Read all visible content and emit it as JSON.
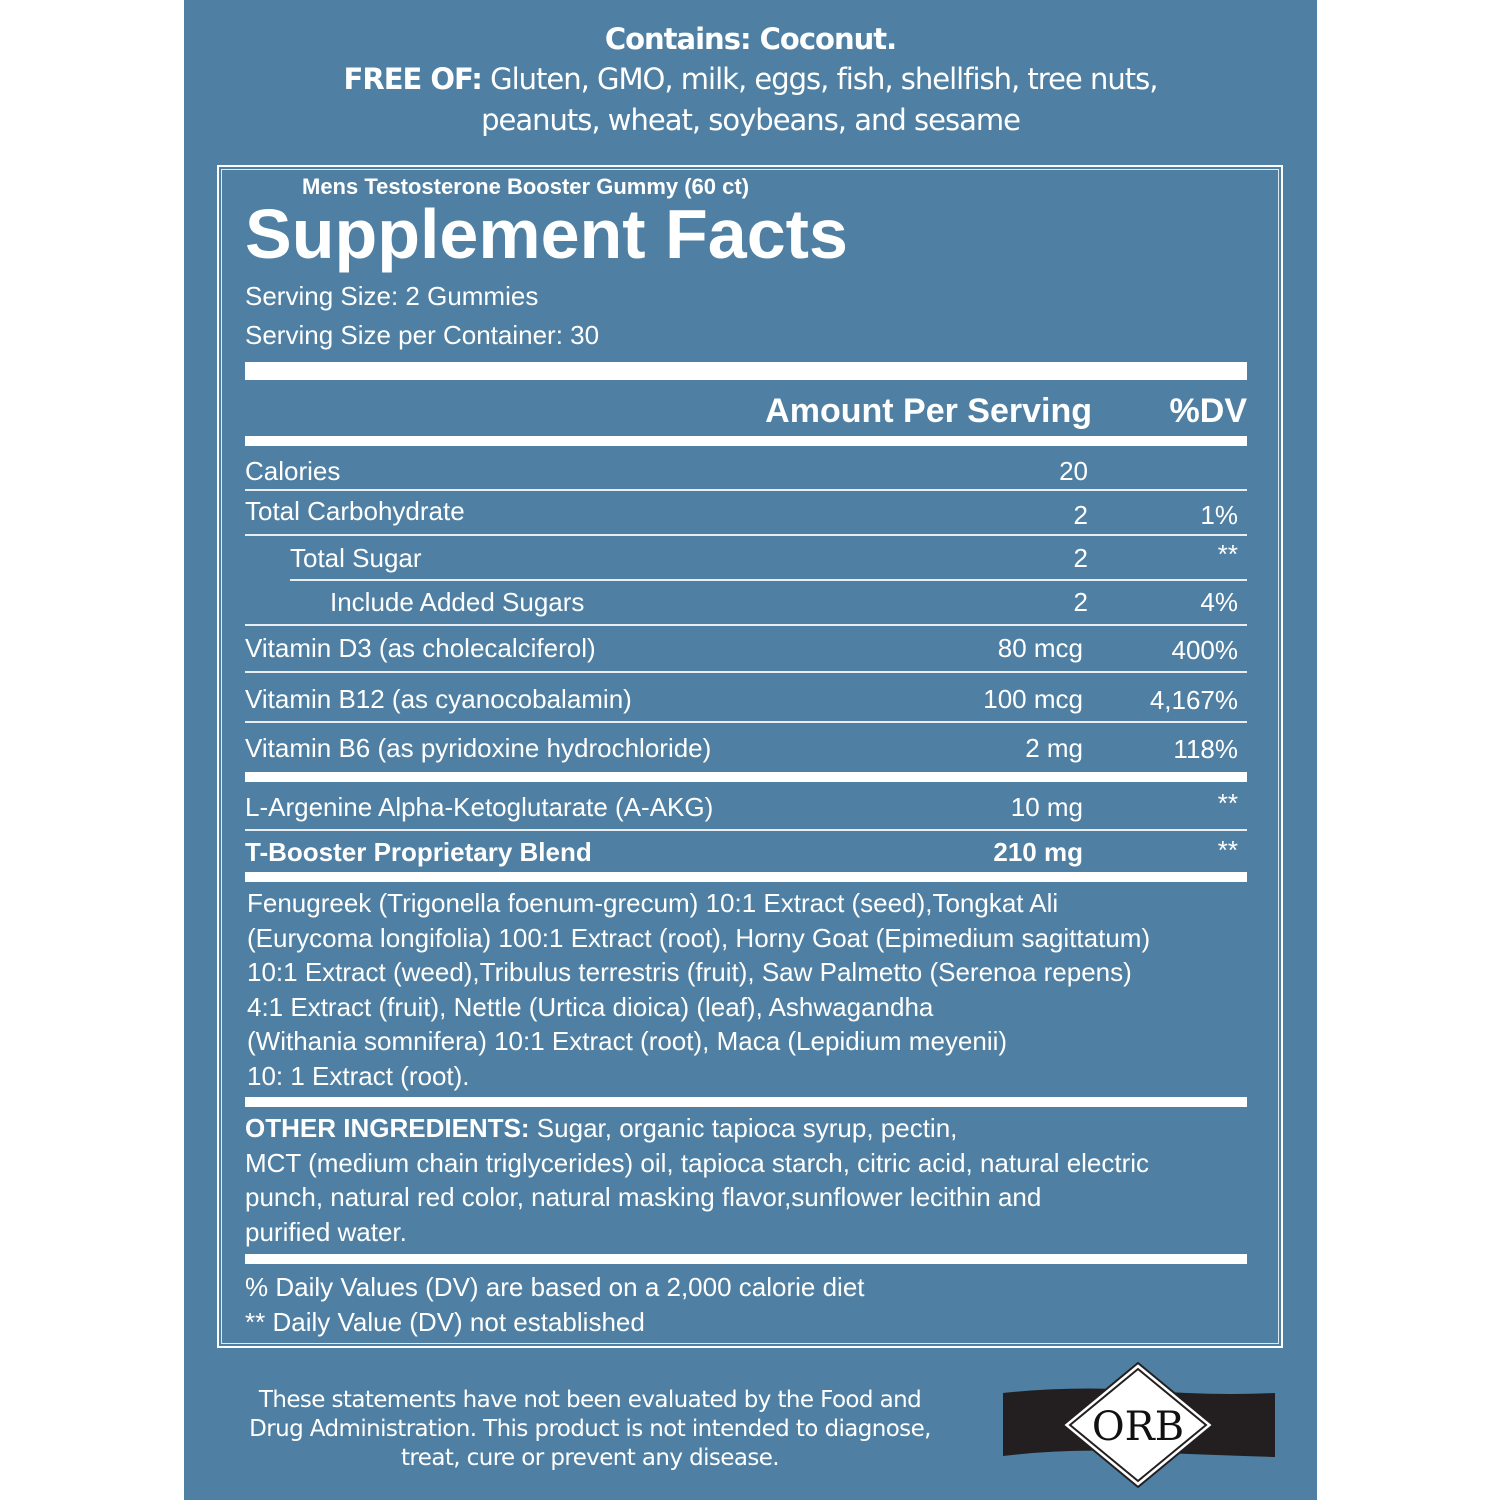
{
  "allergens": {
    "contains_label": "Contains: Coconut.",
    "free_of_label": "FREE OF:",
    "free_of_line1": "Gluten, GMO, milk, eggs, fish, shellfish, tree nuts,",
    "free_of_line2": "peanuts, wheat, soybeans, and sesame"
  },
  "facts": {
    "product_name": "Mens Testosterone Booster Gummy (60 ct)",
    "title": "Supplement Facts",
    "serving_size": "Serving Size:  2 Gummies",
    "servings_per_container": "Serving Size per Container:   30",
    "header_amount": "Amount Per Serving",
    "header_dv": "%DV",
    "rows": [
      {
        "name": "Calories",
        "amount": "20",
        "dv": ""
      },
      {
        "name": "Total Carbohydrate",
        "amount": "2",
        "dv": "1%"
      },
      {
        "name": "Total Sugar",
        "amount": "2",
        "dv": "**"
      },
      {
        "name": "Include Added Sugars",
        "amount": "2",
        "dv": "4%"
      },
      {
        "name": "Vitamin D3 (as cholecalciferol)",
        "amount": "80 mcg",
        "dv": "400%"
      },
      {
        "name": "Vitamin B12 (as cyanocobalamin)",
        "amount": "100 mcg",
        "dv": "4,167%"
      },
      {
        "name": "Vitamin B6 (as pyridoxine hydrochloride)",
        "amount": "2 mg",
        "dv": "118%"
      },
      {
        "name": "L-Argenine Alpha-Ketoglutarate (A-AKG)",
        "amount": "10 mg",
        "dv": "**"
      },
      {
        "name": "T-Booster Proprietary Blend",
        "amount": "210 mg",
        "dv": "**"
      }
    ],
    "blend_lines": [
      "Fenugreek (Trigonella foenum-grecum) 10:1 Extract (seed),Tongkat Ali",
      "(Eurycoma longifolia) 100:1 Extract (root), Horny Goat (Epimedium sagittatum)",
      "10:1 Extract (weed),Tribulus terrestris (fruit), Saw Palmetto (Serenoa repens)",
      "4:1 Extract (fruit), Nettle (Urtica dioica) (leaf), Ashwagandha",
      "(Withania somnifera) 10:1 Extract (root), Maca (Lepidium meyenii)",
      "10: 1 Extract (root)."
    ],
    "other_label": "OTHER INGREDIENTS:",
    "other_line1": " Sugar, organic tapioca syrup, pectin,",
    "other_lines": [
      "MCT (medium chain triglycerides) oil, tapioca starch, citric acid, natural electric",
      "punch, natural red color, natural masking flavor,sunflower lecithin and",
      "purified water."
    ],
    "footnote1": "% Daily Values (DV) are based on a 2,000 calorie diet",
    "footnote2": "** Daily Value (DV) not established"
  },
  "disclaimer": [
    "These statements have not been evaluated by the Food and",
    "Drug Administration. This product is not intended to diagnose,",
    "treat, cure or prevent any disease."
  ],
  "logo": {
    "text": "ORB"
  },
  "colors": {
    "background": "#4f80a3",
    "text": "#ffffff",
    "logo_band": "#231f20"
  }
}
